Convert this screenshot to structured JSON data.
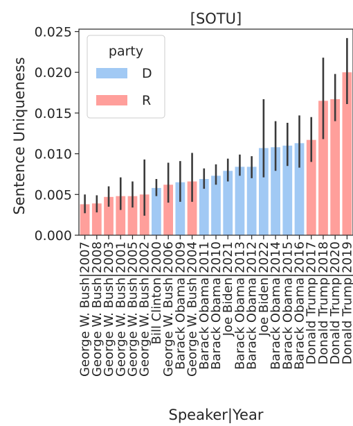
{
  "chart_data": {
    "type": "bar",
    "title": "[SOTU]",
    "xlabel": "Speaker|Year",
    "ylabel": "Sentence Uniqueness",
    "ylim": [
      0,
      0.0253
    ],
    "yticks": [
      "0.000",
      "0.005",
      "0.010",
      "0.015",
      "0.020",
      "0.025"
    ],
    "grid": false,
    "legend": {
      "title": "party",
      "placement": "top-left",
      "entries": [
        {
          "label": "D",
          "color": "#a1c9f4"
        },
        {
          "label": "R",
          "color": "#ff9f9b"
        }
      ]
    },
    "colors": {
      "D": "#a1c9f4",
      "R": "#ff9f9b",
      "errorbar": "#3a3a3a"
    },
    "categories": [
      "George W. Bush|2007",
      "George W. Bush|2008",
      "George W. Bush|2003",
      "George W. Bush|2001",
      "George W. Bush|2005",
      "George W. Bush|2002",
      "Bill Clinton|2000",
      "George W. Bush|2006",
      "Barack Obama|2009",
      "George W. Bush|2004",
      "Barack Obama|2011",
      "Barack Obama|2010",
      "Joe Biden|2021",
      "Barack Obama|2013",
      "Barack Obama|2012",
      "Joe Biden|2022",
      "Barack Obama|2014",
      "Barack Obama|2015",
      "Barack Obama|2016",
      "Donald Trump|2017",
      "Donald Trump|2018",
      "Donald Trump|2020",
      "Donald Trump|2019"
    ],
    "party": [
      "R",
      "R",
      "R",
      "R",
      "R",
      "R",
      "D",
      "R",
      "D",
      "R",
      "D",
      "D",
      "D",
      "D",
      "D",
      "D",
      "D",
      "D",
      "D",
      "R",
      "R",
      "R",
      "R"
    ],
    "values": [
      0.0038,
      0.0039,
      0.0047,
      0.0048,
      0.0048,
      0.005,
      0.0058,
      0.0062,
      0.0065,
      0.0066,
      0.0069,
      0.0073,
      0.0079,
      0.0084,
      0.0084,
      0.0107,
      0.0108,
      0.011,
      0.0113,
      0.0117,
      0.0165,
      0.0167,
      0.02
    ],
    "ci_low": [
      0.0027,
      0.0028,
      0.0035,
      0.0031,
      0.0034,
      0.0024,
      0.0048,
      0.004,
      0.0041,
      0.0041,
      0.0057,
      0.0062,
      0.0066,
      0.0073,
      0.007,
      0.0071,
      0.0079,
      0.0085,
      0.0083,
      0.009,
      0.0118,
      0.014,
      0.0161
    ],
    "ci_high": [
      0.005,
      0.0049,
      0.006,
      0.0071,
      0.0066,
      0.0093,
      0.0069,
      0.0089,
      0.0091,
      0.0101,
      0.0082,
      0.0087,
      0.0094,
      0.0099,
      0.0097,
      0.0167,
      0.014,
      0.0138,
      0.0147,
      0.0145,
      0.0218,
      0.0198,
      0.0242
    ]
  }
}
